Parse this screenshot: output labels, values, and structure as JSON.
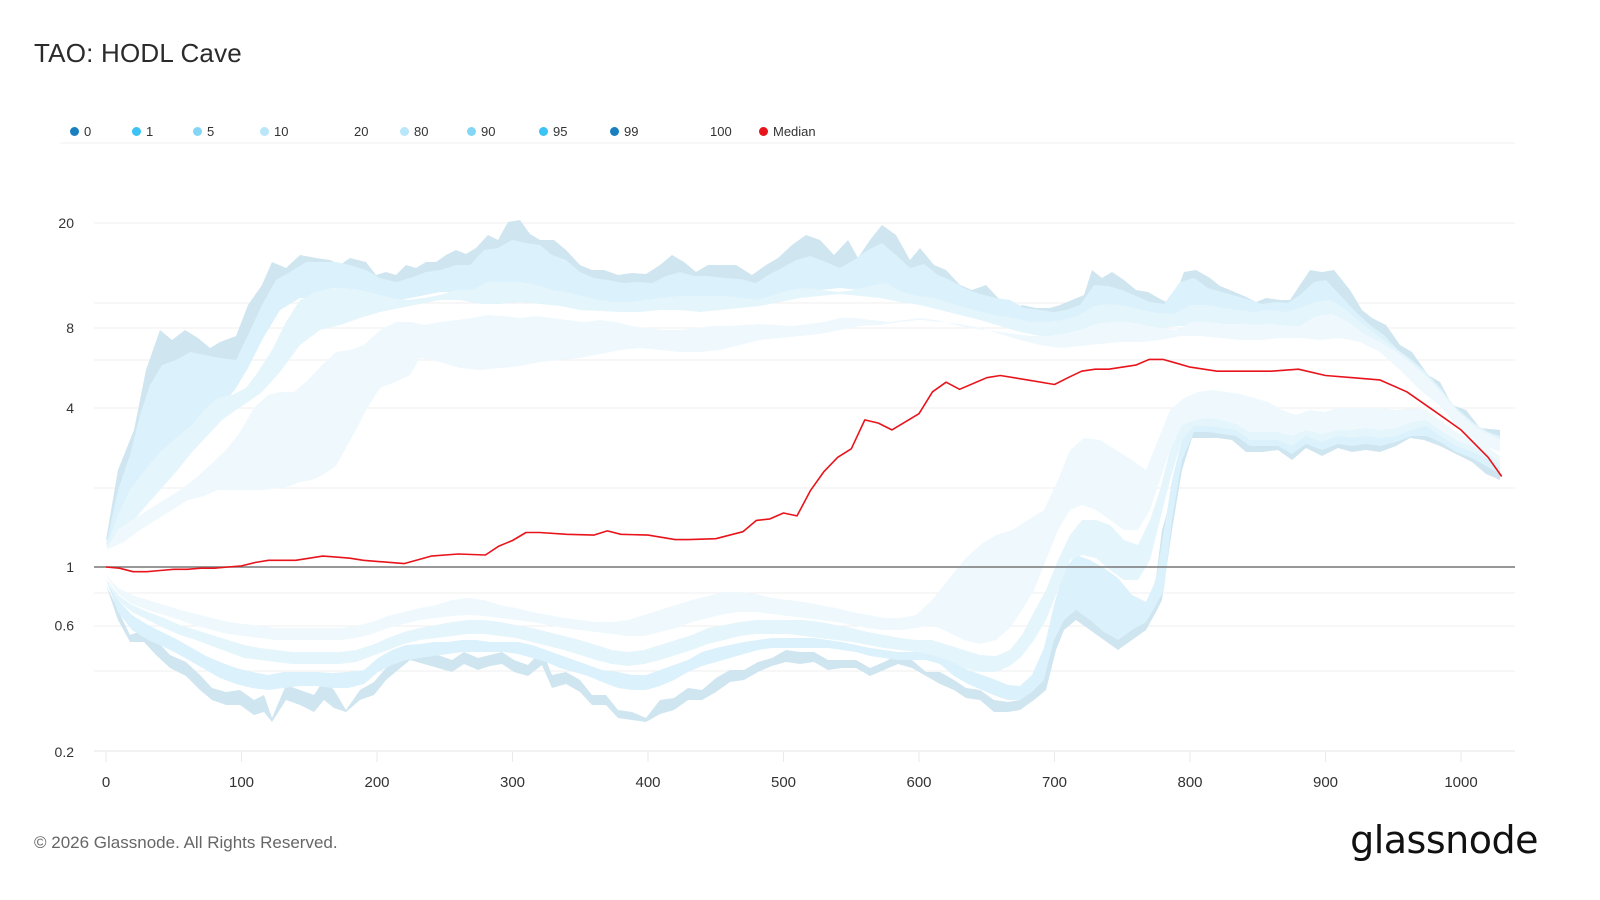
{
  "title": "TAO: HODL Cave",
  "legend": [
    {
      "label": "0",
      "color": "#1a7fc1",
      "x": 0
    },
    {
      "label": "1",
      "color": "#3cc3f5",
      "x": 62
    },
    {
      "label": "5",
      "color": "#84d6f7",
      "x": 123
    },
    {
      "label": "10",
      "color": "#b9e6f9",
      "x": 190
    },
    {
      "label": "20",
      "color": "",
      "x": 270
    },
    {
      "label": "80",
      "color": "#b9e6f9",
      "x": 330
    },
    {
      "label": "90",
      "color": "#84d6f7",
      "x": 397
    },
    {
      "label": "95",
      "color": "#3cc3f5",
      "x": 469
    },
    {
      "label": "99",
      "color": "#1a7fc1",
      "x": 540
    },
    {
      "label": "100",
      "color": "",
      "x": 626
    },
    {
      "label": "Median",
      "color": "#e8141c",
      "x": 689
    }
  ],
  "footer": "© 2026 Glassnode. All Rights Reserved.",
  "brand": "glassnode",
  "chart_data": {
    "type": "area",
    "title": "TAO: HODL Cave",
    "xlabel": "",
    "ylabel": "",
    "yscale": "log",
    "ylim": [
      0.2,
      20
    ],
    "xlim": [
      0,
      1030
    ],
    "y_ticks": [
      0.2,
      0.6,
      1,
      4,
      8,
      20
    ],
    "x_ticks": [
      0,
      100,
      200,
      300,
      400,
      500,
      600,
      700,
      800,
      900,
      1000
    ],
    "grid": true,
    "legend_position": "top-left",
    "reference_line": 1,
    "series": [
      {
        "name": "Median",
        "color": "#e8141c",
        "x": [
          0,
          10,
          20,
          30,
          40,
          50,
          60,
          70,
          80,
          90,
          100,
          110,
          120,
          130,
          140,
          150,
          160,
          170,
          180,
          190,
          200,
          220,
          240,
          260,
          280,
          290,
          300,
          310,
          320,
          340,
          360,
          370,
          380,
          400,
          420,
          430,
          450,
          470,
          480,
          490,
          500,
          510,
          520,
          530,
          540,
          550,
          560,
          570,
          580,
          600,
          610,
          620,
          630,
          650,
          660,
          680,
          700,
          710,
          720,
          730,
          740,
          760,
          770,
          780,
          790,
          800,
          820,
          840,
          860,
          880,
          900,
          920,
          940,
          960,
          980,
          1000,
          1020,
          1030
        ],
        "values": [
          1.0,
          0.99,
          0.96,
          0.96,
          0.97,
          0.98,
          0.98,
          0.99,
          0.99,
          1.0,
          1.01,
          1.04,
          1.06,
          1.06,
          1.06,
          1.08,
          1.1,
          1.09,
          1.08,
          1.06,
          1.05,
          1.03,
          1.1,
          1.12,
          1.11,
          1.2,
          1.26,
          1.35,
          1.35,
          1.33,
          1.32,
          1.37,
          1.33,
          1.32,
          1.27,
          1.27,
          1.28,
          1.36,
          1.5,
          1.52,
          1.6,
          1.56,
          1.95,
          2.3,
          2.6,
          2.8,
          3.6,
          3.5,
          3.3,
          3.8,
          4.6,
          5.0,
          4.7,
          5.2,
          5.3,
          5.1,
          4.9,
          5.2,
          5.5,
          5.6,
          5.6,
          5.8,
          6.1,
          6.1,
          5.9,
          5.7,
          5.5,
          5.5,
          5.5,
          5.6,
          5.3,
          5.2,
          5.1,
          4.6,
          3.9,
          3.3,
          2.6,
          2.2
        ]
      },
      {
        "name": "100 (max)",
        "color": "#cfe5f0",
        "shape": "upper envelope, peaks ~20 near x=300, ~19 near x=570, falls to ~3 by x=1030"
      },
      {
        "name": "0 (min)",
        "color": "#cfe5f0",
        "shape": "lower envelope, ~0.3 at x=120-400, ~0.35 at x=650, rises to ~3.6 after x=800"
      }
    ]
  }
}
